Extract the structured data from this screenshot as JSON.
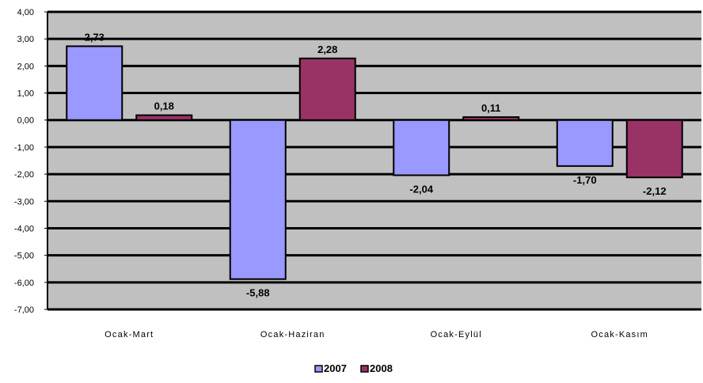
{
  "chart_data": {
    "type": "bar",
    "categories": [
      "Ocak-Mart",
      "Ocak-Haziran",
      "Ocak-Eylül",
      "Ocak-Kasım"
    ],
    "series": [
      {
        "name": "2007",
        "values": [
          2.73,
          -5.88,
          -2.04,
          -1.7
        ],
        "labels": [
          "2,73",
          "-5,88",
          "-2,04",
          "-1,70"
        ],
        "color": "#9999ff"
      },
      {
        "name": "2008",
        "values": [
          0.18,
          2.28,
          0.11,
          -2.12
        ],
        "labels": [
          "0,18",
          "2,28",
          "0,11",
          "-2,12"
        ],
        "color": "#993366"
      }
    ],
    "ylim": [
      -7,
      4
    ],
    "yticks": [
      4,
      3,
      2,
      1,
      0,
      -1,
      -2,
      -3,
      -4,
      -5,
      -6,
      -7
    ],
    "ytick_labels": [
      "4,00",
      "3,00",
      "2,00",
      "1,00",
      "0,00",
      "-1,00",
      "-2,00",
      "-3,00",
      "-4,00",
      "-5,00",
      "-6,00",
      "-7,00"
    ],
    "title": "",
    "xlabel": "",
    "ylabel": "",
    "grid": true,
    "legend_position": "bottom",
    "plot_background": "#c0c0c0"
  }
}
